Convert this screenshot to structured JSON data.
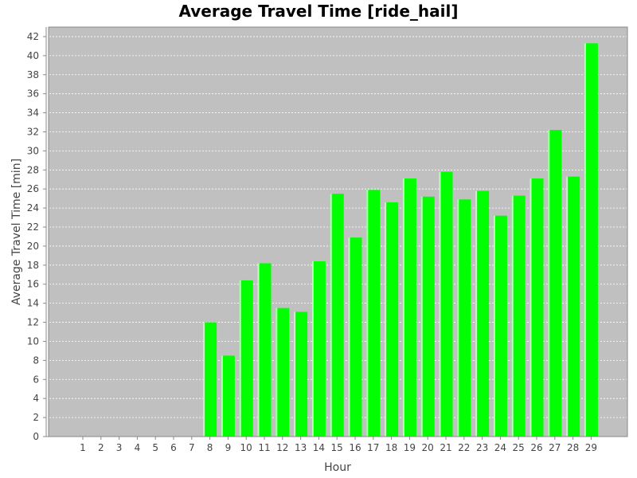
{
  "chart_data": {
    "type": "bar",
    "title": "Average Travel Time [ride_hail]",
    "xlabel": "Hour",
    "ylabel": "Average Travel Time [min]",
    "ylim": [
      0,
      43
    ],
    "yticks": [
      0,
      2,
      4,
      6,
      8,
      10,
      12,
      14,
      16,
      18,
      20,
      22,
      24,
      26,
      28,
      30,
      32,
      34,
      36,
      38,
      40,
      42
    ],
    "grid": true,
    "categories": [
      "1",
      "2",
      "3",
      "4",
      "5",
      "6",
      "7",
      "8",
      "9",
      "10",
      "11",
      "12",
      "13",
      "14",
      "15",
      "16",
      "17",
      "18",
      "19",
      "20",
      "21",
      "22",
      "23",
      "24",
      "25",
      "26",
      "27",
      "28",
      "29"
    ],
    "values": [
      0,
      0,
      0,
      0,
      0,
      0,
      0,
      12.0,
      8.5,
      16.4,
      18.2,
      13.5,
      13.1,
      18.4,
      25.5,
      20.9,
      25.9,
      24.6,
      27.1,
      25.2,
      27.8,
      24.9,
      25.8,
      23.2,
      25.3,
      27.1,
      32.2,
      27.3,
      41.3
    ],
    "colors": {
      "bar": "#00ff00",
      "bar_highlight": "#b8ffb8",
      "plot_background": "#c0c0c0",
      "gridline": "#ffffff",
      "axis": "#888888"
    }
  }
}
